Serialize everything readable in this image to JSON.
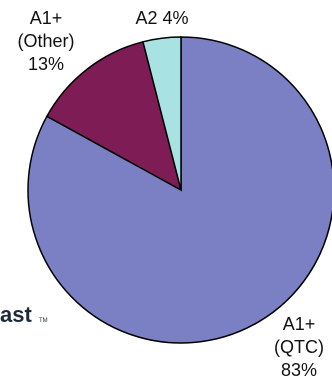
{
  "chart_data": {
    "type": "pie",
    "slices": [
      {
        "label": [
          "A1+",
          "(QTC)",
          "83%"
        ],
        "value": 83,
        "color": "#7b7fc4"
      },
      {
        "label": [
          "A1+",
          "(Other)",
          "13%"
        ],
        "value": 13,
        "color": "#7e1c55"
      },
      {
        "label": [
          "A2 4%"
        ],
        "value": 4,
        "color": "#a8e2e2"
      }
    ],
    "start": "12 o'clock",
    "direction": "clockwise"
  },
  "logo": {
    "text": "ast",
    "tm": "TM"
  }
}
